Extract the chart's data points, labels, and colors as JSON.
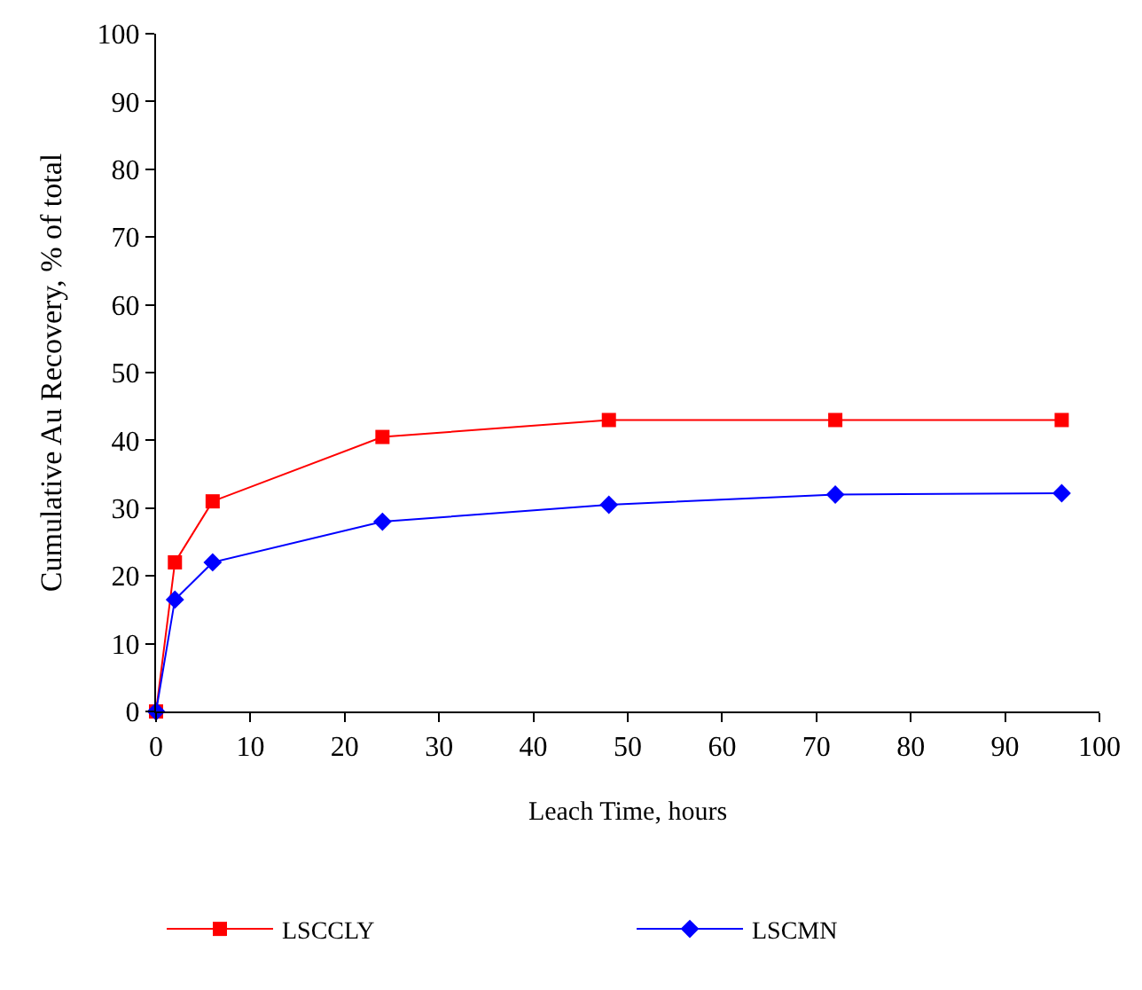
{
  "chart_data": {
    "type": "line",
    "xlabel": "Leach Time, hours",
    "ylabel": "Cumulative Au Recovery, % of total",
    "x": [
      0,
      2,
      6,
      24,
      48,
      72,
      96
    ],
    "series": [
      {
        "name": "LSCCLY",
        "color": "#ff0000",
        "marker": "square",
        "values": [
          0,
          22,
          31,
          40.5,
          43,
          43,
          43
        ]
      },
      {
        "name": "LSCMN",
        "color": "#0000ff",
        "marker": "diamond",
        "values": [
          0,
          16.5,
          22,
          28,
          30.5,
          32,
          32.2
        ]
      }
    ],
    "xlim": [
      0,
      100
    ],
    "xticks": [
      0,
      10,
      20,
      30,
      40,
      50,
      60,
      70,
      80,
      90,
      100
    ],
    "ylim": [
      0,
      100
    ],
    "yticks": [
      0,
      10,
      20,
      30,
      40,
      50,
      60,
      70,
      80,
      90,
      100
    ],
    "legend": "bottom",
    "line_style": "solid"
  }
}
